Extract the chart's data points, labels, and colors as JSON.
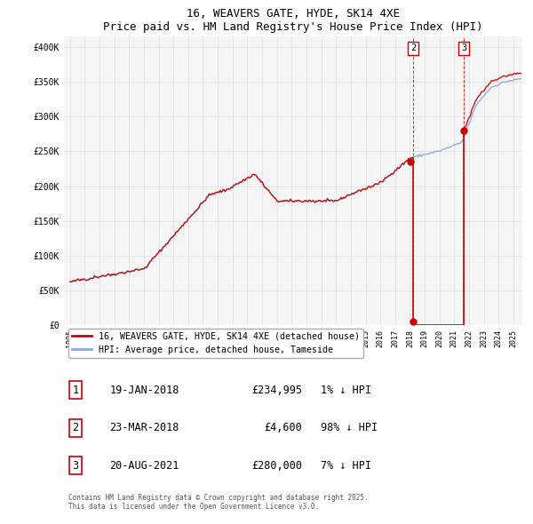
{
  "title": "16, WEAVERS GATE, HYDE, SK14 4XE",
  "subtitle": "Price paid vs. HM Land Registry's House Price Index (HPI)",
  "legend_line1": "16, WEAVERS GATE, HYDE, SK14 4XE (detached house)",
  "legend_line2": "HPI: Average price, detached house, Tameside",
  "footer": "Contains HM Land Registry data © Crown copyright and database right 2025.\nThis data is licensed under the Open Government Licence v3.0.",
  "transactions": [
    {
      "num": 1,
      "date": "19-JAN-2018",
      "price": "£234,995",
      "hpi": "1% ↓ HPI"
    },
    {
      "num": 2,
      "date": "23-MAR-2018",
      "price": "£4,600",
      "hpi": "98% ↓ HPI"
    },
    {
      "num": 3,
      "date": "20-AUG-2021",
      "price": "£280,000",
      "hpi": "7% ↓ HPI"
    }
  ],
  "ylim": [
    0,
    415000
  ],
  "yticks": [
    0,
    50000,
    100000,
    150000,
    200000,
    250000,
    300000,
    350000,
    400000
  ],
  "ytick_labels": [
    "£0",
    "£50K",
    "£100K",
    "£150K",
    "£200K",
    "£250K",
    "£300K",
    "£350K",
    "£400K"
  ],
  "red_color": "#cc0000",
  "blue_color": "#88aadd",
  "background_color": "#ffffff",
  "plot_bg_color": "#f5f5f5",
  "grid_color": "#dddddd",
  "t1_x": 2018.05,
  "t1_y": 234995,
  "t2_x": 2018.22,
  "t2_y": 4600,
  "t3_x": 2021.64,
  "t3_y": 280000,
  "xlim_left": 1994.6,
  "xlim_right": 2025.6
}
